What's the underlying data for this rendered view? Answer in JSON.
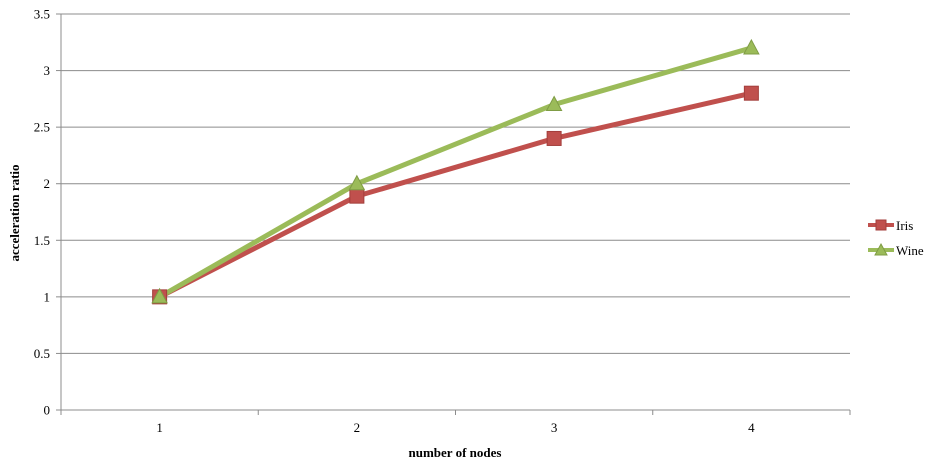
{
  "chart_data": {
    "type": "line",
    "xlabel": "number  of nodes",
    "ylabel": "acceleration ratio",
    "categories": [
      "1",
      "2",
      "3",
      "4"
    ],
    "ylim": [
      0,
      3.5
    ],
    "ytick_labels": [
      "0",
      "0.5",
      "1",
      "1.5",
      "2",
      "2.5",
      "3",
      "3.5"
    ],
    "grid": true,
    "legend_position": "right",
    "series": [
      {
        "name": "Iris",
        "values": [
          1,
          1.89,
          2.4,
          2.8
        ],
        "color": "#c0504d",
        "marker": "square"
      },
      {
        "name": "Wine",
        "values": [
          1,
          2,
          2.7,
          3.2
        ],
        "color": "#9bbb59",
        "marker": "triangle"
      }
    ]
  }
}
